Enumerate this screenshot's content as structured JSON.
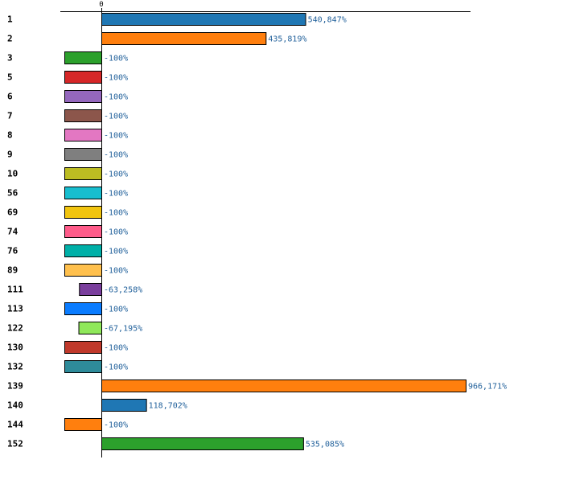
{
  "chart_data": {
    "type": "bar",
    "orientation": "horizontal",
    "xlim": [
      -100,
      966171
    ],
    "x_ticks": [
      {
        "value": 0,
        "label": "0"
      }
    ],
    "categories": [
      "1",
      "2",
      "3",
      "5",
      "6",
      "7",
      "8",
      "9",
      "10",
      "56",
      "69",
      "74",
      "76",
      "89",
      "111",
      "113",
      "122",
      "130",
      "132",
      "139",
      "140",
      "144",
      "152"
    ],
    "values": [
      540847,
      435819,
      -100,
      -100,
      -100,
      -100,
      -100,
      -100,
      -100,
      -100,
      -100,
      -100,
      -100,
      -100,
      -63258,
      -100,
      -67195,
      -100,
      -100,
      966171,
      118702,
      -100,
      535085
    ],
    "value_labels": [
      "540,847%",
      "435,819%",
      "-100%",
      "-100%",
      "-100%",
      "-100%",
      "-100%",
      "-100%",
      "-100%",
      "-100%",
      "-100%",
      "-100%",
      "-100%",
      "-100%",
      "-63,258%",
      "-100%",
      "-67,195%",
      "-100%",
      "-100%",
      "966,171%",
      "118,702%",
      "-100%",
      "535,085%"
    ],
    "colors": [
      "#1f77b4",
      "#ff7f0e",
      "#2ca02c",
      "#d62728",
      "#9467bd",
      "#8c564b",
      "#e377c2",
      "#7f7f7f",
      "#bcbd22",
      "#17becf",
      "#f1c40f",
      "#ff5c8a",
      "#00b0a8",
      "#ffc04d",
      "#7a3e9d",
      "#0a7cff",
      "#8fe85a",
      "#c0392b",
      "#2e8b9a",
      "#ff7f0e",
      "#1f77b4",
      "#ff7f0e",
      "#2ca02c"
    ],
    "title": "",
    "xlabel": "",
    "ylabel": "",
    "grid": false,
    "legend": "none"
  }
}
